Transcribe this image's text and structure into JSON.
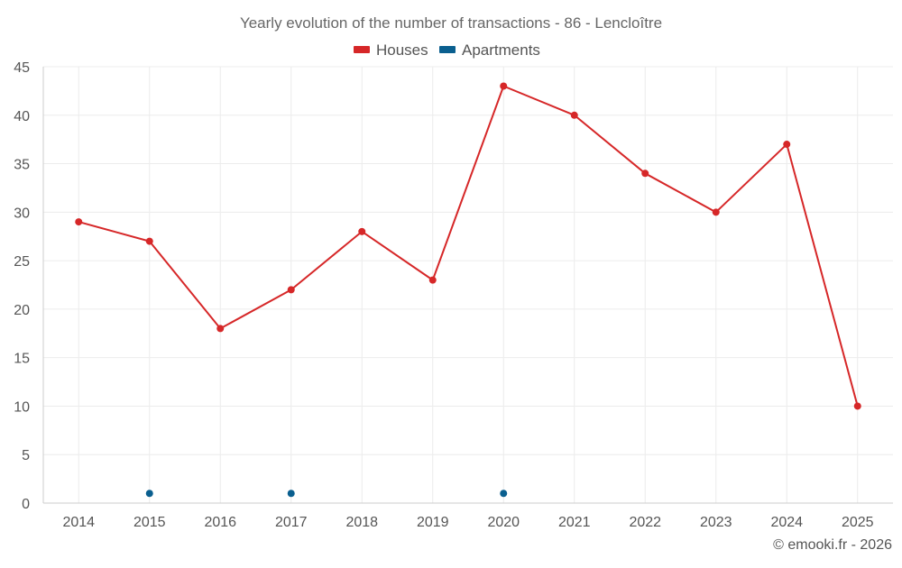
{
  "chart_data": {
    "type": "line",
    "title": "Yearly evolution of the number of transactions - 86 - Lencloître",
    "xlabel": "",
    "ylabel": "",
    "categories": [
      "2014",
      "2015",
      "2016",
      "2017",
      "2018",
      "2019",
      "2020",
      "2021",
      "2022",
      "2023",
      "2024",
      "2025"
    ],
    "ylim": [
      0,
      45
    ],
    "yticks": [
      "0",
      "5",
      "10",
      "15",
      "20",
      "25",
      "30",
      "35",
      "40",
      "45"
    ],
    "grid": true,
    "legend_position": "top-center",
    "series": [
      {
        "name": "Houses",
        "color": "#d62728",
        "style": "line-with-markers",
        "values": [
          29,
          27,
          18,
          22,
          28,
          23,
          43,
          40,
          34,
          30,
          37,
          10
        ]
      },
      {
        "name": "Apartments",
        "color": "#0a5f8f",
        "style": "markers",
        "values": [
          null,
          1,
          null,
          1,
          null,
          null,
          1,
          null,
          null,
          null,
          null,
          null
        ]
      }
    ],
    "credit": "© emooki.fr - 2026"
  }
}
